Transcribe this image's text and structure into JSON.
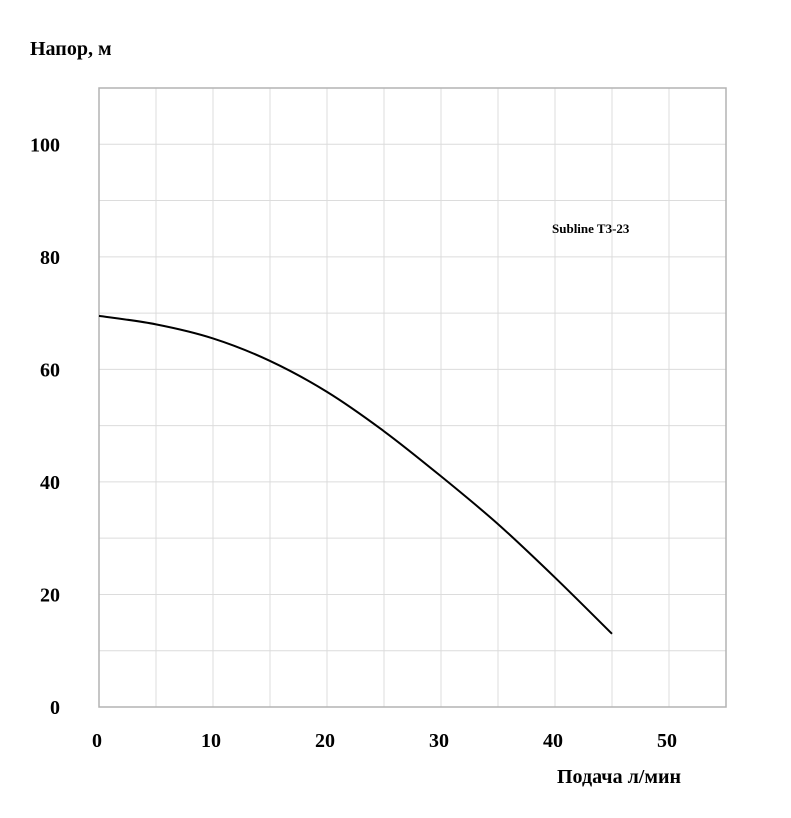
{
  "chart_data": {
    "type": "line",
    "xlabel": "Подача л/мин",
    "ylabel": "Напор, м",
    "xlim": [
      0,
      55
    ],
    "ylim": [
      0,
      110
    ],
    "x_ticks": [
      0,
      10,
      20,
      30,
      40,
      50
    ],
    "y_ticks": [
      0,
      20,
      40,
      60,
      80,
      100
    ],
    "x_grid_step": 5,
    "y_grid_step": 10,
    "grid": true,
    "annotation": "Subline T3-23",
    "series": [
      {
        "x": [
          0,
          5,
          10,
          15,
          20,
          25,
          30,
          35,
          40,
          45
        ],
        "y": [
          69.5,
          68,
          65.5,
          61.5,
          56,
          49,
          41,
          32.5,
          23,
          13
        ]
      }
    ]
  }
}
